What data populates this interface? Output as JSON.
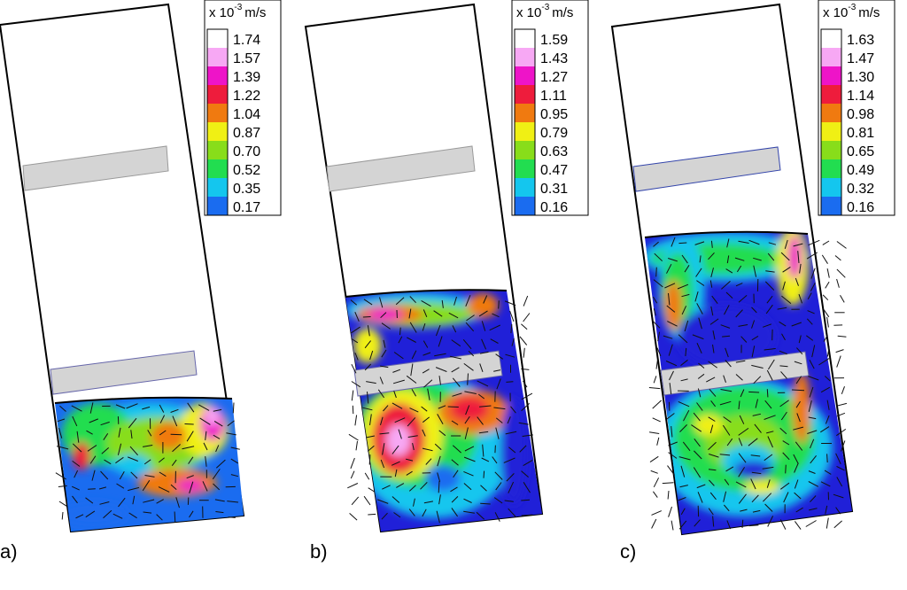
{
  "figure_kind": "velocity magnitude contour plots with vector fields",
  "unit_label": {
    "prefix": "x 10",
    "exponent": "-3",
    "suffix": "m/s"
  },
  "color_scale": [
    "#2020d8",
    "#1a6cf0",
    "#14c6ee",
    "#22dd50",
    "#88dd1a",
    "#f0f014",
    "#f07a10",
    "#ee1c3c",
    "#ee14c8",
    "#f7a8f4",
    "#ffffff"
  ],
  "colors": {
    "baffle": "#d4d4d4",
    "outline": "#000000",
    "vector": "#111111"
  },
  "panels": [
    {
      "id": "a",
      "label": "a)",
      "legend_values": [
        "1.74",
        "1.57",
        "1.39",
        "1.22",
        "1.04",
        "0.87",
        "0.70",
        "0.52",
        "0.35",
        "0.17"
      ]
    },
    {
      "id": "b",
      "label": "b)",
      "legend_values": [
        "1.59",
        "1.43",
        "1.27",
        "1.11",
        "0.95",
        "0.79",
        "0.63",
        "0.47",
        "0.31",
        "0.16"
      ]
    },
    {
      "id": "c",
      "label": "c)",
      "legend_values": [
        "1.63",
        "1.47",
        "1.30",
        "1.14",
        "0.98",
        "0.81",
        "0.65",
        "0.49",
        "0.32",
        "0.16"
      ]
    }
  ]
}
